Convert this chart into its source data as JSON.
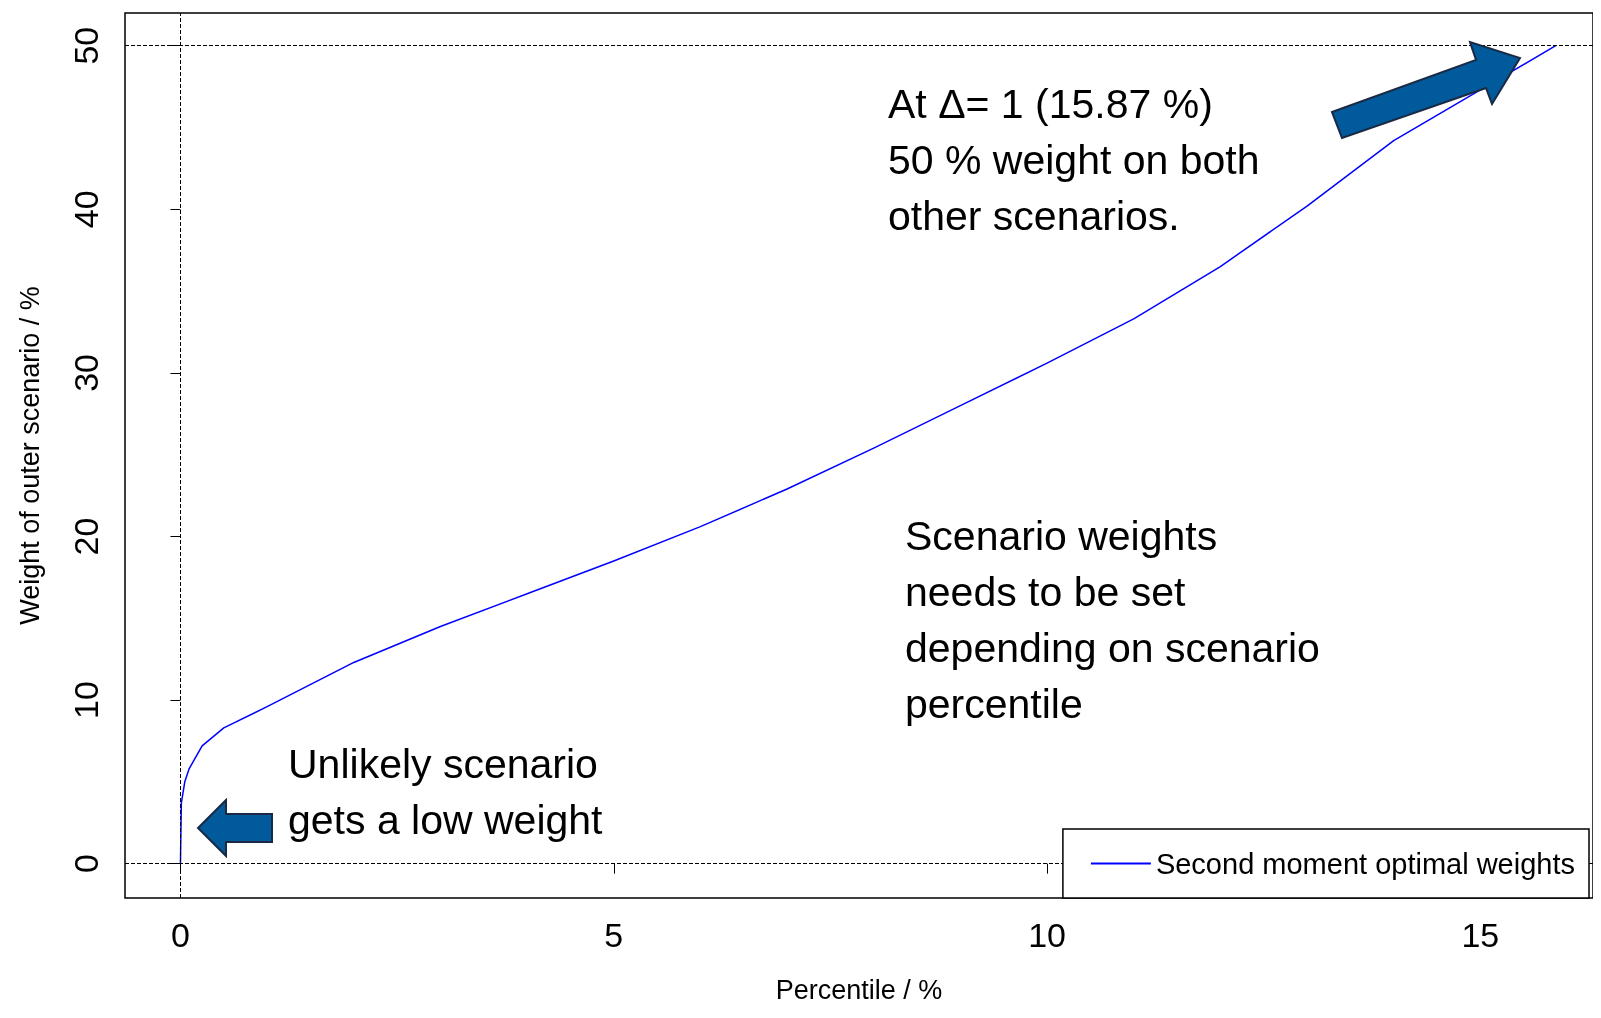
{
  "chart_data": {
    "type": "line",
    "xlabel": "Percentile / %",
    "ylabel": "Weight of outer scenario / %",
    "xlim": [
      -0.64,
      16.3
    ],
    "ylim": [
      -2.1,
      52
    ],
    "xticks": [
      0,
      5,
      10,
      15
    ],
    "yticks": [
      0,
      10,
      20,
      30,
      40,
      50
    ],
    "grid": false,
    "legend": "bottom right",
    "marker": "none",
    "line_style": "solid",
    "series": [
      {
        "name": "Second moment optimal weights",
        "color": "#0000ff",
        "x": [
          0,
          0.01,
          0.05,
          0.1,
          0.25,
          0.5,
          1,
          2,
          3,
          4,
          5,
          6,
          7,
          8,
          9,
          10,
          11,
          12,
          13,
          14,
          15,
          15.87
        ],
        "values": [
          0,
          3.7,
          5,
          5.8,
          7.2,
          8.3,
          9.6,
          12.3,
          14.5,
          16.5,
          18.5,
          20.6,
          22.9,
          25.4,
          28,
          30.6,
          33.3,
          36.5,
          40.2,
          44.2,
          47.3,
          50
        ]
      }
    ],
    "ref_lines": [
      {
        "axis": "x",
        "value": 0,
        "color": "#000000",
        "line_style": "dashed"
      },
      {
        "axis": "y",
        "value": 0,
        "color": "#000000",
        "line_style": "dashed"
      },
      {
        "axis": "y",
        "value": 50,
        "color": "#000000",
        "line_style": "dashed"
      }
    ],
    "annotations": [
      "At Δ= 1 (15.87 %)\n50 % weight on both\nother scenarios.",
      "Scenario weights\nneeds to be set\ndepending on scenario\npercentile",
      "Unlikely scenario\ngets a low weight"
    ]
  }
}
